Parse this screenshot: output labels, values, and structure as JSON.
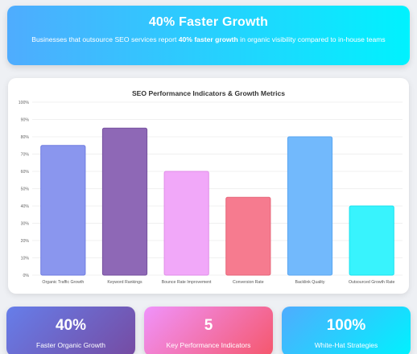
{
  "hero": {
    "title": "40% Faster Growth",
    "text_before": "Businesses that outsource SEO services report ",
    "text_bold": "40% faster growth",
    "text_after": " in organic visibility compared to in-house teams"
  },
  "chart_data": {
    "type": "bar",
    "title": "SEO Performance Indicators & Growth Metrics",
    "xlabel": "",
    "ylabel": "",
    "ylim": [
      0,
      100
    ],
    "ytick_step": 10,
    "ytick_suffix": "%",
    "grid": true,
    "legend": "none",
    "categories": [
      "Organic Traffic Growth",
      "Keyword Rankings",
      "Bounce Rate Improvement",
      "Conversion Rate",
      "Backlink Quality",
      "Outsourced Growth Rate"
    ],
    "values": [
      75,
      85,
      60,
      45,
      80,
      40
    ],
    "colors": [
      "#8a96ee",
      "#8e68b6",
      "#f1a8f9",
      "#f67b8f",
      "#72b9fc",
      "#38f3fd"
    ],
    "border_colors": [
      "#6f7ce0",
      "#76519e",
      "#e08ee8",
      "#e66478",
      "#5aa6f0",
      "#19e2ee"
    ]
  },
  "stats": [
    {
      "value": "40%",
      "label": "Faster Organic Growth"
    },
    {
      "value": "5",
      "label": "Key Performance Indicators"
    },
    {
      "value": "100%",
      "label": "White-Hat Strategies"
    }
  ]
}
